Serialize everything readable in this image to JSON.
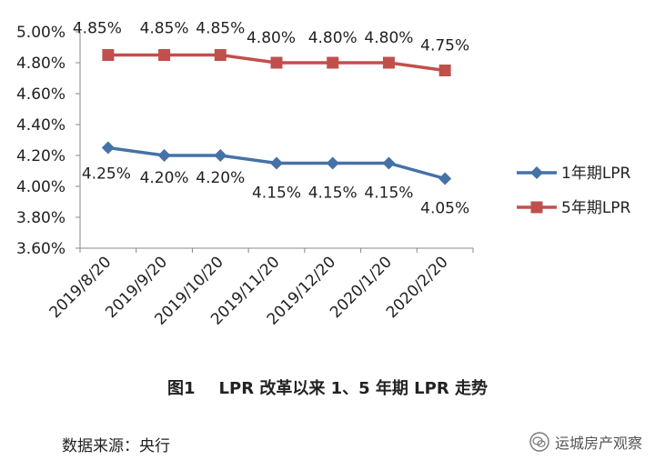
{
  "chart_data": {
    "type": "line",
    "categories": [
      "2019/8/20",
      "2019/9/20",
      "2019/10/20",
      "2019/11/20",
      "2019/12/20",
      "2020/1/20",
      "2020/2/20"
    ],
    "series": [
      {
        "name": "1年期LPR",
        "values": [
          4.25,
          4.2,
          4.2,
          4.15,
          4.15,
          4.15,
          4.05
        ],
        "labels": [
          "4.25%",
          "4.20%",
          "4.20%",
          "4.15%",
          "4.15%",
          "4.15%",
          "4.05%"
        ],
        "color": "#4572A7",
        "marker": "diamond"
      },
      {
        "name": "5年期LPR",
        "values": [
          4.85,
          4.85,
          4.85,
          4.8,
          4.8,
          4.8,
          4.75
        ],
        "labels": [
          "4.85%",
          "4.85%",
          "4.85%",
          "4.80%",
          "4.80%",
          "4.80%",
          "4.75%"
        ],
        "color": "#C0504D",
        "marker": "square"
      }
    ],
    "ylim": [
      3.6,
      5.0
    ],
    "yticks": [
      "3.60%",
      "3.80%",
      "4.00%",
      "4.20%",
      "4.40%",
      "4.60%",
      "4.80%",
      "5.00%"
    ],
    "grid": false,
    "legend_position": "right"
  },
  "caption": {
    "figure_no": "图1",
    "text": "LPR 改革以来 1、5 年期 LPR 走势"
  },
  "source": "数据来源：央行",
  "brand": {
    "name": "运城房产观察",
    "icon": "wechat-icon"
  }
}
